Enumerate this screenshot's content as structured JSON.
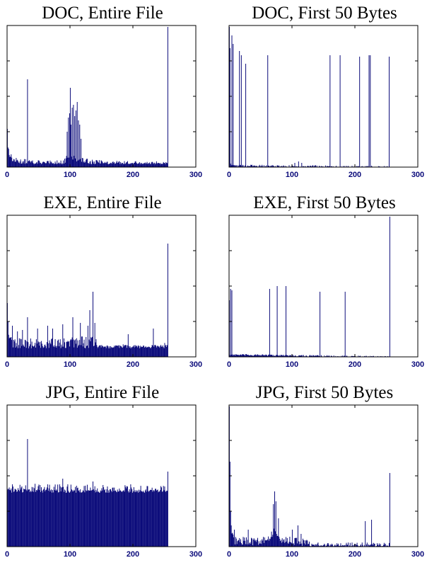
{
  "colors": {
    "bar": "#0a0a7a",
    "axis": "#000000",
    "tick_label": "#0a0a7a"
  },
  "chart_data": [
    {
      "type": "bar",
      "title": "DOC, Entire File",
      "xlabel": "",
      "ylabel": "",
      "xlim": [
        0,
        300
      ],
      "ylim": [
        0,
        1
      ],
      "xticks": [
        0,
        100,
        200,
        300
      ],
      "yticks": [
        0.25,
        0.5,
        0.75,
        1.0
      ],
      "grid": false,
      "fill_from": 0,
      "fill_to": 255,
      "baseline": 0.02,
      "noise": 0.02,
      "profile": [
        [
          0,
          0.25
        ],
        [
          1,
          0.14
        ],
        [
          3,
          0.1
        ],
        [
          5,
          0.08
        ],
        [
          9,
          0.05
        ],
        [
          20,
          0.04
        ],
        [
          60,
          0.025
        ],
        [
          90,
          0.03
        ],
        [
          95,
          0.08
        ],
        [
          125,
          0.04
        ],
        [
          160,
          0.025
        ],
        [
          254,
          0.02
        ]
      ],
      "spikes": [
        [
          0,
          0.27
        ],
        [
          32,
          0.62
        ],
        [
          95,
          0.25
        ],
        [
          97,
          0.35
        ],
        [
          99,
          0.38
        ],
        [
          100,
          0.56
        ],
        [
          101,
          0.3
        ],
        [
          103,
          0.42
        ],
        [
          105,
          0.44
        ],
        [
          107,
          0.36
        ],
        [
          109,
          0.4
        ],
        [
          111,
          0.46
        ],
        [
          113,
          0.33
        ],
        [
          115,
          0.3
        ],
        [
          117,
          0.2
        ],
        [
          255,
          0.99
        ]
      ]
    },
    {
      "type": "bar",
      "title": "DOC, First 50 Bytes",
      "xlabel": "",
      "ylabel": "",
      "xlim": [
        0,
        300
      ],
      "ylim": [
        0,
        1
      ],
      "xticks": [
        0,
        100,
        200,
        300
      ],
      "yticks": [
        0.25,
        0.5,
        0.75,
        1.0
      ],
      "grid": false,
      "fill_from": 0,
      "fill_to": 255,
      "baseline": 0.0,
      "noise": 0.008,
      "profile": [
        [
          0,
          0.02
        ],
        [
          10,
          0.01
        ],
        [
          254,
          0.0
        ]
      ],
      "spikes": [
        [
          0,
          0.99
        ],
        [
          1,
          0.84
        ],
        [
          4,
          0.93
        ],
        [
          6,
          0.87
        ],
        [
          16,
          0.82
        ],
        [
          19,
          0.79
        ],
        [
          26,
          0.73
        ],
        [
          61,
          0.79
        ],
        [
          104,
          0.03
        ],
        [
          110,
          0.04
        ],
        [
          115,
          0.03
        ],
        [
          160,
          0.79
        ],
        [
          176,
          0.79
        ],
        [
          207,
          0.78
        ],
        [
          222,
          0.79
        ],
        [
          224,
          0.79
        ],
        [
          254,
          0.78
        ]
      ]
    },
    {
      "type": "bar",
      "title": "EXE, Entire File",
      "xlabel": "",
      "ylabel": "",
      "xlim": [
        0,
        300
      ],
      "ylim": [
        0,
        1
      ],
      "xticks": [
        0,
        100,
        200,
        300
      ],
      "yticks": [
        0.25,
        0.5,
        0.75,
        1.0
      ],
      "grid": false,
      "fill_from": 0,
      "fill_to": 255,
      "baseline": 0.06,
      "noise": 0.05,
      "profile": [
        [
          0,
          0.3
        ],
        [
          3,
          0.14
        ],
        [
          10,
          0.09
        ],
        [
          40,
          0.08
        ],
        [
          100,
          0.09
        ],
        [
          140,
          0.1
        ],
        [
          146,
          0.035
        ],
        [
          254,
          0.05
        ]
      ],
      "spikes": [
        [
          0,
          0.38
        ],
        [
          1,
          0.25
        ],
        [
          8,
          0.22
        ],
        [
          16,
          0.18
        ],
        [
          24,
          0.19
        ],
        [
          32,
          0.28
        ],
        [
          48,
          0.2
        ],
        [
          64,
          0.22
        ],
        [
          72,
          0.2
        ],
        [
          88,
          0.23
        ],
        [
          104,
          0.28
        ],
        [
          116,
          0.24
        ],
        [
          128,
          0.22
        ],
        [
          131,
          0.33
        ],
        [
          136,
          0.46
        ],
        [
          139,
          0.24
        ],
        [
          192,
          0.16
        ],
        [
          232,
          0.2
        ],
        [
          255,
          0.8
        ]
      ]
    },
    {
      "type": "bar",
      "title": "EXE, First 50 Bytes",
      "xlabel": "",
      "ylabel": "",
      "xlim": [
        0,
        300
      ],
      "ylim": [
        0,
        1
      ],
      "xticks": [
        0,
        100,
        200,
        300
      ],
      "yticks": [
        0.25,
        0.5,
        0.75,
        1.0
      ],
      "grid": false,
      "fill_from": 0,
      "fill_to": 255,
      "baseline": 0.0,
      "noise": 0.006,
      "profile": [
        [
          0,
          0.015
        ],
        [
          254,
          0.0
        ]
      ],
      "spikes": [
        [
          0,
          0.4
        ],
        [
          2,
          0.48
        ],
        [
          4,
          0.47
        ],
        [
          64,
          0.48
        ],
        [
          76,
          0.5
        ],
        [
          90,
          0.5
        ],
        [
          144,
          0.46
        ],
        [
          184,
          0.46
        ],
        [
          255,
          0.99
        ]
      ]
    },
    {
      "type": "bar",
      "title": "JPG, Entire File",
      "xlabel": "",
      "ylabel": "",
      "xlim": [
        0,
        300
      ],
      "ylim": [
        0,
        1
      ],
      "xticks": [
        0,
        100,
        200,
        300
      ],
      "yticks": [
        0.25,
        0.5,
        0.75,
        1.0
      ],
      "grid": false,
      "fill_from": 0,
      "fill_to": 255,
      "baseline": 0.38,
      "noise": 0.05,
      "profile": [
        [
          0,
          0.4
        ],
        [
          100,
          0.39
        ],
        [
          254,
          0.38
        ]
      ],
      "spikes": [
        [
          32,
          0.76
        ],
        [
          64,
          0.44
        ],
        [
          88,
          0.48
        ],
        [
          96,
          0.44
        ],
        [
          136,
          0.46
        ],
        [
          196,
          0.44
        ],
        [
          255,
          0.53
        ]
      ]
    },
    {
      "type": "bar",
      "title": "JPG, First 50 Bytes",
      "xlabel": "",
      "ylabel": "",
      "xlim": [
        0,
        300
      ],
      "ylim": [
        0,
        1
      ],
      "xticks": [
        0,
        100,
        200,
        300
      ],
      "yticks": [
        0.25,
        0.5,
        0.75,
        1.0
      ],
      "grid": false,
      "fill_from": 0,
      "fill_to": 255,
      "baseline": 0.0,
      "noise": 0.03,
      "profile": [
        [
          0,
          0.1
        ],
        [
          10,
          0.04
        ],
        [
          60,
          0.04
        ],
        [
          72,
          0.12
        ],
        [
          80,
          0.05
        ],
        [
          120,
          0.03
        ],
        [
          130,
          0.0
        ],
        [
          254,
          0.0
        ]
      ],
      "spikes": [
        [
          0,
          0.99
        ],
        [
          1,
          0.6
        ],
        [
          2,
          0.25
        ],
        [
          3,
          0.15
        ],
        [
          8,
          0.12
        ],
        [
          30,
          0.12
        ],
        [
          40,
          0.05
        ],
        [
          70,
          0.3
        ],
        [
          72,
          0.39
        ],
        [
          74,
          0.32
        ],
        [
          78,
          0.2
        ],
        [
          96,
          0.07
        ],
        [
          100,
          0.12
        ],
        [
          109,
          0.15
        ],
        [
          114,
          0.09
        ],
        [
          216,
          0.18
        ],
        [
          226,
          0.19
        ],
        [
          240,
          0.02
        ],
        [
          255,
          0.52
        ]
      ]
    }
  ]
}
